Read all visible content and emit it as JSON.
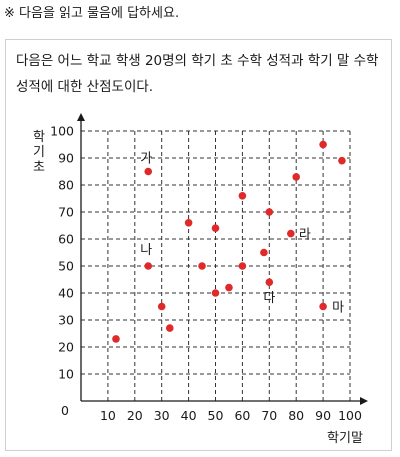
{
  "instruction": "※ 다음을 읽고 물음에 답하세요.",
  "passage": "다음은 어느 학교 학생 20명의 학기 초 수학 성적과 학기 말 수학 성적에 대한 산점도이다.",
  "chart_data": {
    "type": "scatter",
    "xlabel": "학기말",
    "ylabel": "학기초",
    "xlim": [
      0,
      100
    ],
    "ylim": [
      0,
      100
    ],
    "x_ticks": [
      10,
      20,
      30,
      40,
      50,
      60,
      70,
      80,
      90,
      100
    ],
    "y_ticks": [
      10,
      20,
      30,
      40,
      50,
      60,
      70,
      80,
      90,
      100
    ],
    "origin_label": "0",
    "grid": true,
    "grid_style": "dashed",
    "point_color": "#e02a2a",
    "points": [
      {
        "x": 13,
        "y": 23,
        "label": ""
      },
      {
        "x": 25,
        "y": 85,
        "label": "가"
      },
      {
        "x": 25,
        "y": 50,
        "label": "나"
      },
      {
        "x": 30,
        "y": 35,
        "label": ""
      },
      {
        "x": 33,
        "y": 27,
        "label": ""
      },
      {
        "x": 40,
        "y": 66,
        "label": ""
      },
      {
        "x": 45,
        "y": 50,
        "label": ""
      },
      {
        "x": 50,
        "y": 64,
        "label": ""
      },
      {
        "x": 50,
        "y": 40,
        "label": ""
      },
      {
        "x": 55,
        "y": 42,
        "label": ""
      },
      {
        "x": 60,
        "y": 76,
        "label": ""
      },
      {
        "x": 60,
        "y": 50,
        "label": ""
      },
      {
        "x": 68,
        "y": 55,
        "label": ""
      },
      {
        "x": 70,
        "y": 70,
        "label": ""
      },
      {
        "x": 70,
        "y": 44,
        "label": "다"
      },
      {
        "x": 78,
        "y": 62,
        "label": "라"
      },
      {
        "x": 80,
        "y": 83,
        "label": ""
      },
      {
        "x": 90,
        "y": 95,
        "label": ""
      },
      {
        "x": 90,
        "y": 35,
        "label": "마"
      },
      {
        "x": 97,
        "y": 89,
        "label": ""
      }
    ]
  }
}
